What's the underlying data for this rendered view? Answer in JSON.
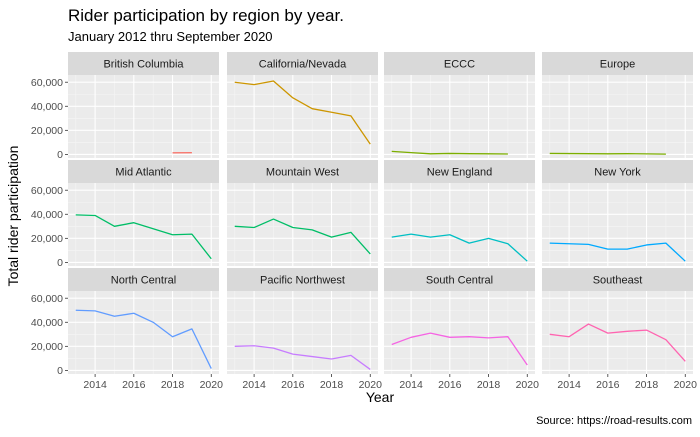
{
  "chart_data": {
    "type": "line",
    "title": "Rider participation by region by year.",
    "subtitle": "January 2012 thru September 2020",
    "xlabel": "Year",
    "ylabel": "Total rider participation",
    "caption": "Source: https://road-results.com",
    "xlim": [
      2012.6,
      2020.4
    ],
    "ylim": [
      -3000,
      66000
    ],
    "x_ticks": [
      2014,
      2016,
      2018,
      2020
    ],
    "y_ticks": [
      0,
      20000,
      40000,
      60000
    ],
    "y_tick_labels": [
      "0",
      "20,000",
      "40,000",
      "60,000"
    ],
    "grid": true,
    "legend": "none",
    "facet_layout": {
      "rows": 3,
      "cols": 4
    },
    "panels": [
      {
        "name": "British Columbia",
        "color": "#F8766D",
        "x": [
          2018,
          2019
        ],
        "y": [
          1300,
          1400
        ]
      },
      {
        "name": "California/Nevada",
        "color": "#CD9600",
        "x": [
          2013,
          2014,
          2015,
          2016,
          2017,
          2018,
          2019,
          2020
        ],
        "y": [
          60000,
          58000,
          61000,
          47000,
          38000,
          35000,
          32000,
          8500
        ]
      },
      {
        "name": "ECCC",
        "color": "#7CAE00",
        "x": [
          2013,
          2014,
          2015,
          2016,
          2017,
          2018,
          2019
        ],
        "y": [
          2500,
          1500,
          500,
          800,
          600,
          500,
          300
        ]
      },
      {
        "name": "Europe",
        "color": "#7CAE00",
        "x": [
          2013,
          2014,
          2015,
          2016,
          2017,
          2018,
          2019
        ],
        "y": [
          800,
          700,
          600,
          500,
          600,
          400,
          200
        ]
      },
      {
        "name": "Mid Atlantic",
        "color": "#00BE67",
        "x": [
          2013,
          2014,
          2015,
          2016,
          2017,
          2018,
          2019,
          2020
        ],
        "y": [
          39500,
          39000,
          30000,
          33000,
          28000,
          23000,
          23500,
          3000
        ]
      },
      {
        "name": "Mountain West",
        "color": "#00BE67",
        "x": [
          2013,
          2014,
          2015,
          2016,
          2017,
          2018,
          2019,
          2020
        ],
        "y": [
          30000,
          29000,
          36000,
          29000,
          27000,
          21000,
          25000,
          7000
        ]
      },
      {
        "name": "New England",
        "color": "#00BFC4",
        "x": [
          2013,
          2014,
          2015,
          2016,
          2017,
          2018,
          2019,
          2020
        ],
        "y": [
          21000,
          23500,
          21000,
          23000,
          16000,
          20000,
          15500,
          1000
        ]
      },
      {
        "name": "New York",
        "color": "#00A9FF",
        "x": [
          2013,
          2014,
          2015,
          2016,
          2017,
          2018,
          2019,
          2020
        ],
        "y": [
          16000,
          15500,
          15000,
          11000,
          11000,
          14500,
          16000,
          1000
        ]
      },
      {
        "name": "North Central",
        "color": "#619CFF",
        "x": [
          2013,
          2014,
          2015,
          2016,
          2017,
          2018,
          2019,
          2020
        ],
        "y": [
          50000,
          49500,
          45000,
          47500,
          40000,
          28000,
          34500,
          1500
        ]
      },
      {
        "name": "Pacific Northwest",
        "color": "#C77CFF",
        "x": [
          2013,
          2014,
          2015,
          2016,
          2017,
          2018,
          2019,
          2020
        ],
        "y": [
          20000,
          20500,
          18500,
          13500,
          11500,
          9500,
          12500,
          800
        ]
      },
      {
        "name": "South Central",
        "color": "#F564E3",
        "x": [
          2013,
          2014,
          2015,
          2016,
          2017,
          2018,
          2019,
          2020
        ],
        "y": [
          21500,
          27500,
          31000,
          27500,
          28000,
          27000,
          28000,
          4500
        ]
      },
      {
        "name": "Southeast",
        "color": "#FF64B0",
        "x": [
          2013,
          2014,
          2015,
          2016,
          2017,
          2018,
          2019,
          2020
        ],
        "y": [
          30000,
          28000,
          38500,
          31000,
          32500,
          33500,
          25500,
          7500
        ]
      }
    ]
  }
}
